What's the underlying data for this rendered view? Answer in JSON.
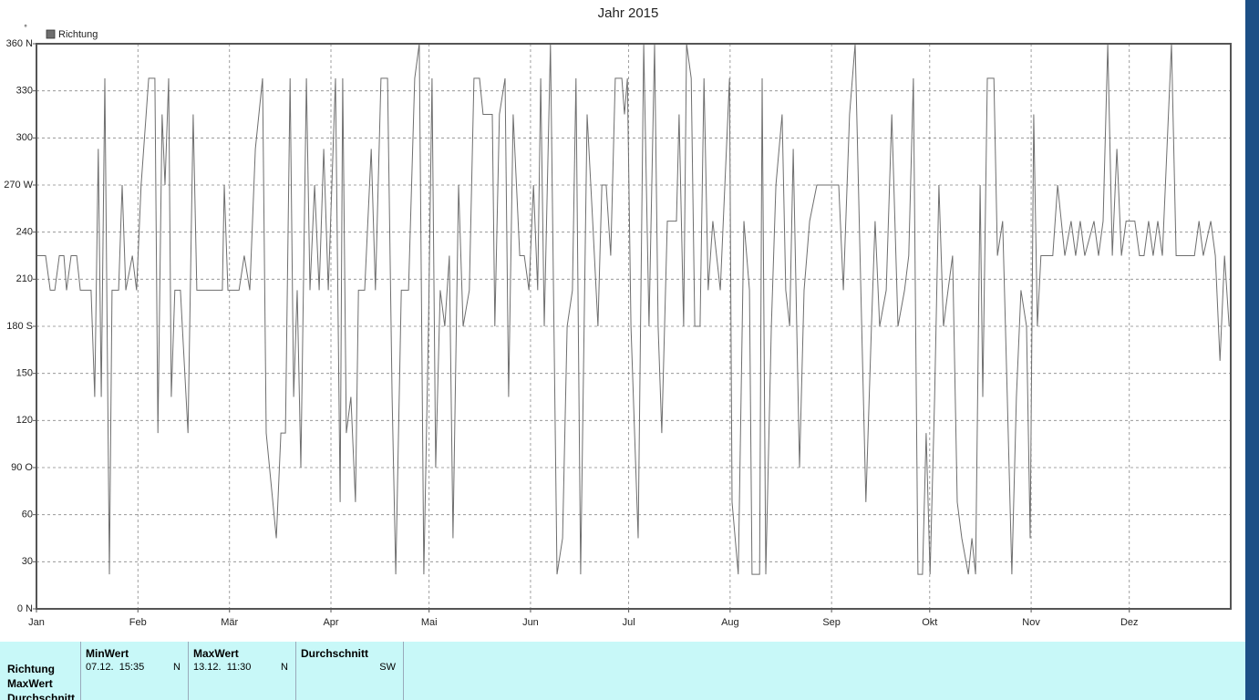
{
  "chart_data": {
    "type": "line",
    "title": "Jahr 2015",
    "y_unit": "°",
    "xlim": [
      0,
      365
    ],
    "ylim": [
      0,
      360
    ],
    "xticks": [
      {
        "value": 0,
        "label": "Jan"
      },
      {
        "value": 31,
        "label": "Feb"
      },
      {
        "value": 59,
        "label": "Mär"
      },
      {
        "value": 90,
        "label": "Apr"
      },
      {
        "value": 120,
        "label": "Mai"
      },
      {
        "value": 151,
        "label": "Jun"
      },
      {
        "value": 181,
        "label": "Jul"
      },
      {
        "value": 212,
        "label": "Aug"
      },
      {
        "value": 243,
        "label": "Sep"
      },
      {
        "value": 273,
        "label": "Okt"
      },
      {
        "value": 304,
        "label": "Nov"
      },
      {
        "value": 334,
        "label": "Dez"
      }
    ],
    "yticks": [
      {
        "value": 0,
        "label": "0 N"
      },
      30,
      60,
      {
        "value": 90,
        "label": "90 O"
      },
      120,
      150,
      {
        "value": 180,
        "label": "180 S"
      },
      210,
      240,
      {
        "value": 270,
        "label": "270 W"
      },
      300,
      330,
      {
        "value": 360,
        "label": "360 N"
      }
    ],
    "grid": true,
    "legend": "top-left",
    "x": [
      0,
      2.8,
      4.2,
      5.6,
      7,
      8.4,
      9.2,
      10.6,
      12.3,
      13.4,
      16.7,
      17.8,
      18.9,
      19.8,
      20.9,
      22.3,
      23.1,
      25.1,
      26.2,
      27.3,
      29.3,
      30.6,
      32,
      34.3,
      36.2,
      37.1,
      38.4,
      39.3,
      40.4,
      41.2,
      42.3,
      44,
      46.3,
      47.9,
      49,
      56.8,
      57.4,
      58.5,
      61.9,
      63.5,
      65.2,
      66.9,
      69.1,
      70.2,
      73.3,
      74.7,
      76.1,
      77.5,
      78.6,
      79.7,
      80.8,
      82.5,
      83.6,
      85,
      86.4,
      87.8,
      89.2,
      91.4,
      92.8,
      93.6,
      94.7,
      96.1,
      97.5,
      98.4,
      100.3,
      102.3,
      103.6,
      105.3,
      107.3,
      108.7,
      109.8,
      111.5,
      113.7,
      115.6,
      117,
      118.4,
      119.8,
      120.9,
      122,
      123.4,
      124.8,
      126.2,
      127.3,
      129,
      130.4,
      132.3,
      133.7,
      135.4,
      136.5,
      139.3,
      140.1,
      141.5,
      143.2,
      144.3,
      145.7,
      147.7,
      149.1,
      150.5,
      151.9,
      153.2,
      154.1,
      155.2,
      157.1,
      159.1,
      160.8,
      162.2,
      163.8,
      164.9,
      166.3,
      168.3,
      170,
      171.6,
      172.8,
      174.1,
      175.5,
      176.9,
      178.9,
      179.7,
      180.6,
      181.7,
      183.9,
      185.6,
      187.2,
      188.9,
      190,
      191.1,
      192.8,
      195.6,
      196.4,
      197.8,
      198.7,
      200.1,
      201.2,
      202.8,
      204,
      205.3,
      206.7,
      209,
      210.4,
      211.8,
      212.6,
      214.5,
      216.2,
      217.9,
      218.7,
      221,
      221.8,
      222.9,
      224.6,
      226,
      227.9,
      229,
      230.2,
      231.3,
      233.2,
      234.6,
      236.3,
      238.5,
      245.2,
      246.6,
      248.5,
      250.2,
      252.2,
      253.5,
      255.2,
      256.3,
      257.7,
      259.7,
      261.4,
      263.3,
      265.3,
      266.6,
      268,
      269.4,
      270.8,
      271.9,
      273.1,
      274.5,
      275.8,
      277.2,
      278.6,
      280,
      281.4,
      282.8,
      284.8,
      285.9,
      287,
      288.4,
      289.2,
      290.6,
      292.6,
      293.7,
      295.3,
      296.7,
      298.1,
      299.5,
      300.9,
      302.6,
      303.7,
      304.8,
      305.9,
      307,
      310.6,
      312.1,
      314.3,
      316.2,
      317.6,
      319,
      320.4,
      323.2,
      324.6,
      326,
      327.4,
      328.8,
      330.2,
      331.6,
      333,
      335.7,
      337.1,
      338.5,
      339.9,
      341.3,
      342.7,
      344.1,
      346.9,
      348.3,
      353.9,
      355.3,
      356.6,
      358.9,
      360.3,
      361.7,
      363.1,
      364.5
    ],
    "series": [
      {
        "name": "Richtung",
        "color": "#6e6e6e",
        "values": [
          225,
          225,
          203,
          203,
          225,
          225,
          203,
          225,
          225,
          203,
          203,
          135,
          293,
          135,
          338,
          22,
          203,
          203,
          270,
          203,
          225,
          203,
          270,
          338,
          338,
          112,
          315,
          270,
          338,
          135,
          203,
          203,
          112,
          315,
          203,
          203,
          270,
          203,
          203,
          225,
          203,
          293,
          338,
          112,
          45,
          112,
          112,
          338,
          135,
          203,
          90,
          338,
          203,
          270,
          203,
          293,
          203,
          338,
          68,
          338,
          112,
          135,
          68,
          203,
          203,
          293,
          203,
          338,
          338,
          135,
          22,
          203,
          203,
          338,
          360,
          22,
          180,
          338,
          90,
          203,
          180,
          225,
          45,
          270,
          180,
          203,
          338,
          338,
          315,
          315,
          180,
          315,
          338,
          135,
          315,
          225,
          225,
          203,
          270,
          203,
          338,
          180,
          360,
          22,
          45,
          180,
          203,
          338,
          22,
          315,
          247,
          180,
          270,
          270,
          225,
          338,
          338,
          315,
          338,
          180,
          45,
          360,
          180,
          360,
          180,
          112,
          247,
          247,
          315,
          180,
          360,
          338,
          180,
          180,
          338,
          203,
          247,
          203,
          270,
          338,
          68,
          22,
          247,
          203,
          22,
          22,
          338,
          22,
          180,
          270,
          315,
          203,
          180,
          293,
          90,
          203,
          247,
          270,
          270,
          203,
          315,
          360,
          180,
          68,
          180,
          247,
          180,
          203,
          315,
          180,
          203,
          225,
          338,
          22,
          22,
          112,
          22,
          135,
          270,
          180,
          203,
          225,
          68,
          45,
          22,
          45,
          22,
          270,
          135,
          338,
          338,
          225,
          247,
          135,
          22,
          135,
          203,
          180,
          45,
          315,
          180,
          225,
          225,
          270,
          225,
          247,
          225,
          247,
          225,
          247,
          225,
          247,
          360,
          225,
          293,
          225,
          247,
          247,
          225,
          225,
          247,
          225,
          247,
          225,
          360,
          225,
          225,
          247,
          225,
          247,
          225,
          158,
          225,
          180
        ]
      }
    ]
  },
  "summary": {
    "row_labels": [
      "Richtung",
      "MaxWert",
      "Durchschnitt"
    ],
    "columns": [
      {
        "title": "MinWert",
        "time": "07.12.  15:35",
        "direction": "N"
      },
      {
        "title": "MaxWert",
        "time": "13.12.  11:30",
        "direction": "N"
      },
      {
        "title": "Durchschnitt",
        "direction": "SW"
      }
    ]
  }
}
